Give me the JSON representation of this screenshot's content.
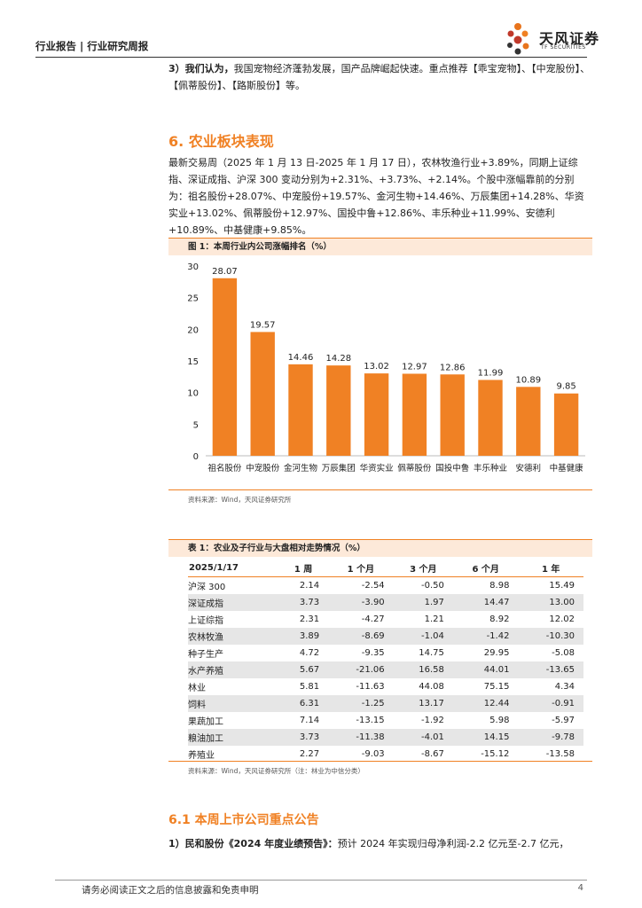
{
  "header": {
    "left": "行业报告 | 行业研究周报",
    "brand": "天风证券",
    "brand_sub": "TF SECURITIES"
  },
  "intro": {
    "bold": "3）我们认为，",
    "text": "我国宠物经济蓬勃发展，国产品牌崛起快速。重点推荐【乖宝宠物】、【中宠股份】、【佩蒂股份】、【路斯股份】等。"
  },
  "section": {
    "title": "6. 农业板块表现",
    "body": "最新交易周（2025 年 1 月 13 日-2025 年 1 月 17 日），农林牧渔行业+3.89%，同期上证综指、深证成指、沪深 300 变动分别为+2.31%、+3.73%、+2.14%。个股中涨幅靠前的分别为：祖名股份+28.07%、中宠股份+19.57%、金河生物+14.46%、万辰集团+14.28%、华资实业+13.02%、佩蒂股份+12.97%、国投中鲁+12.86%、丰乐种业+11.99%、安德利+10.89%、中基健康+9.85%。"
  },
  "figure": {
    "title": "图 1：本周行业内公司涨幅排名（%）",
    "source": "资料来源：Wind，天风证券研究所"
  },
  "chart_data": {
    "type": "bar",
    "title": "图 1：本周行业内公司涨幅排名（%）",
    "categories": [
      "祖名股份",
      "中宠股份",
      "金河生物",
      "万辰集团",
      "华资实业",
      "佩蒂股份",
      "国投中鲁",
      "丰乐种业",
      "安德利",
      "中基健康"
    ],
    "values": [
      28.07,
      19.57,
      14.46,
      14.28,
      13.02,
      12.97,
      12.86,
      11.99,
      10.89,
      9.85
    ],
    "labels": [
      "28.07",
      "19.57",
      "14.46",
      "14.28",
      "13.02",
      "12.97",
      "12.86",
      "11.99",
      "10.89",
      "9.85"
    ],
    "ylim": [
      0,
      30
    ],
    "yticks": [
      "0",
      "5",
      "10",
      "15",
      "20",
      "25",
      "30"
    ],
    "color": "#f08124",
    "xlabel": "",
    "ylabel": ""
  },
  "table": {
    "title": "表 1：农业及子行业与大盘相对走势情况（%）",
    "headers": [
      "2025/1/17",
      "1 周",
      "1 个月",
      "3 个月",
      "6 个月",
      "1 年"
    ],
    "rows": [
      [
        "沪深 300",
        "2.14",
        "-2.54",
        "-0.50",
        "8.98",
        "15.49"
      ],
      [
        "深证成指",
        "3.73",
        "-3.90",
        "1.97",
        "14.47",
        "13.00"
      ],
      [
        "上证综指",
        "2.31",
        "-4.27",
        "1.21",
        "8.92",
        "12.02"
      ],
      [
        "农林牧渔",
        "3.89",
        "-8.69",
        "-1.04",
        "-1.42",
        "-10.30"
      ],
      [
        "种子生产",
        "4.72",
        "-9.35",
        "14.75",
        "29.95",
        "-5.08"
      ],
      [
        "水产养殖",
        "5.67",
        "-21.06",
        "16.58",
        "44.01",
        "-13.65"
      ],
      [
        "林业",
        "5.81",
        "-11.63",
        "44.08",
        "75.15",
        "4.34"
      ],
      [
        "饲料",
        "6.31",
        "-1.25",
        "13.17",
        "12.44",
        "-0.91"
      ],
      [
        "果蔬加工",
        "7.14",
        "-13.15",
        "-1.92",
        "5.98",
        "-5.97"
      ],
      [
        "粮油加工",
        "3.73",
        "-11.38",
        "-4.01",
        "14.15",
        "-9.78"
      ],
      [
        "养殖业",
        "2.27",
        "-9.03",
        "-8.67",
        "-15.12",
        "-13.58"
      ]
    ],
    "source": "资料来源：Wind，天风证券研究所（注：林业为中信分类）"
  },
  "subsection": {
    "title": "6.1 本周上市公司重点公告",
    "bold": "1）民和股份《2024 年度业绩预告》：",
    "text": "预计 2024 年实现归母净利润-2.2 亿元至-2.7 亿元，"
  },
  "footer": {
    "disclaimer": "请务必阅读正文之后的信息披露和免责申明",
    "page": "4"
  }
}
